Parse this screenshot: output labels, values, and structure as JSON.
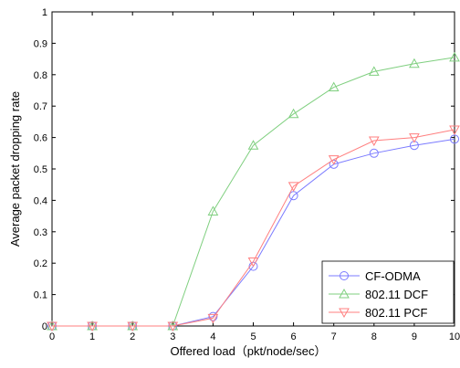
{
  "chart_data": {
    "type": "line",
    "xlabel": "Offered load（pkt/node/sec）",
    "ylabel": "Average packet dropping rate",
    "xlim": [
      0,
      10
    ],
    "ylim": [
      0,
      1
    ],
    "x_ticks": [
      "0",
      "1",
      "2",
      "3",
      "4",
      "5",
      "6",
      "7",
      "8",
      "9",
      "10"
    ],
    "y_ticks": [
      "0",
      "0.1",
      "0.2",
      "0.3",
      "0.4",
      "0.5",
      "0.6",
      "0.7",
      "0.8",
      "0.9",
      "1"
    ],
    "grid": false,
    "legend_position": "bottom-right",
    "x": [
      0,
      1,
      2,
      3,
      4,
      5,
      6,
      7,
      8,
      9,
      10
    ],
    "series": [
      {
        "name": "CF-ODMA",
        "marker": "circle",
        "color": "#7b7bff",
        "values": [
          0,
          0,
          0,
          0,
          0.03,
          0.19,
          0.415,
          0.515,
          0.55,
          0.575,
          0.595
        ]
      },
      {
        "name": "802.11 DCF",
        "marker": "triangle-up",
        "color": "#7fcf7f",
        "values": [
          0,
          0,
          0,
          0,
          0.365,
          0.575,
          0.675,
          0.76,
          0.81,
          0.835,
          0.855
        ]
      },
      {
        "name": "802.11 PCF",
        "marker": "triangle-down",
        "color": "#ff7f7f",
        "values": [
          0,
          0,
          0,
          0,
          0.025,
          0.205,
          0.445,
          0.53,
          0.59,
          0.6,
          0.625
        ]
      }
    ]
  }
}
